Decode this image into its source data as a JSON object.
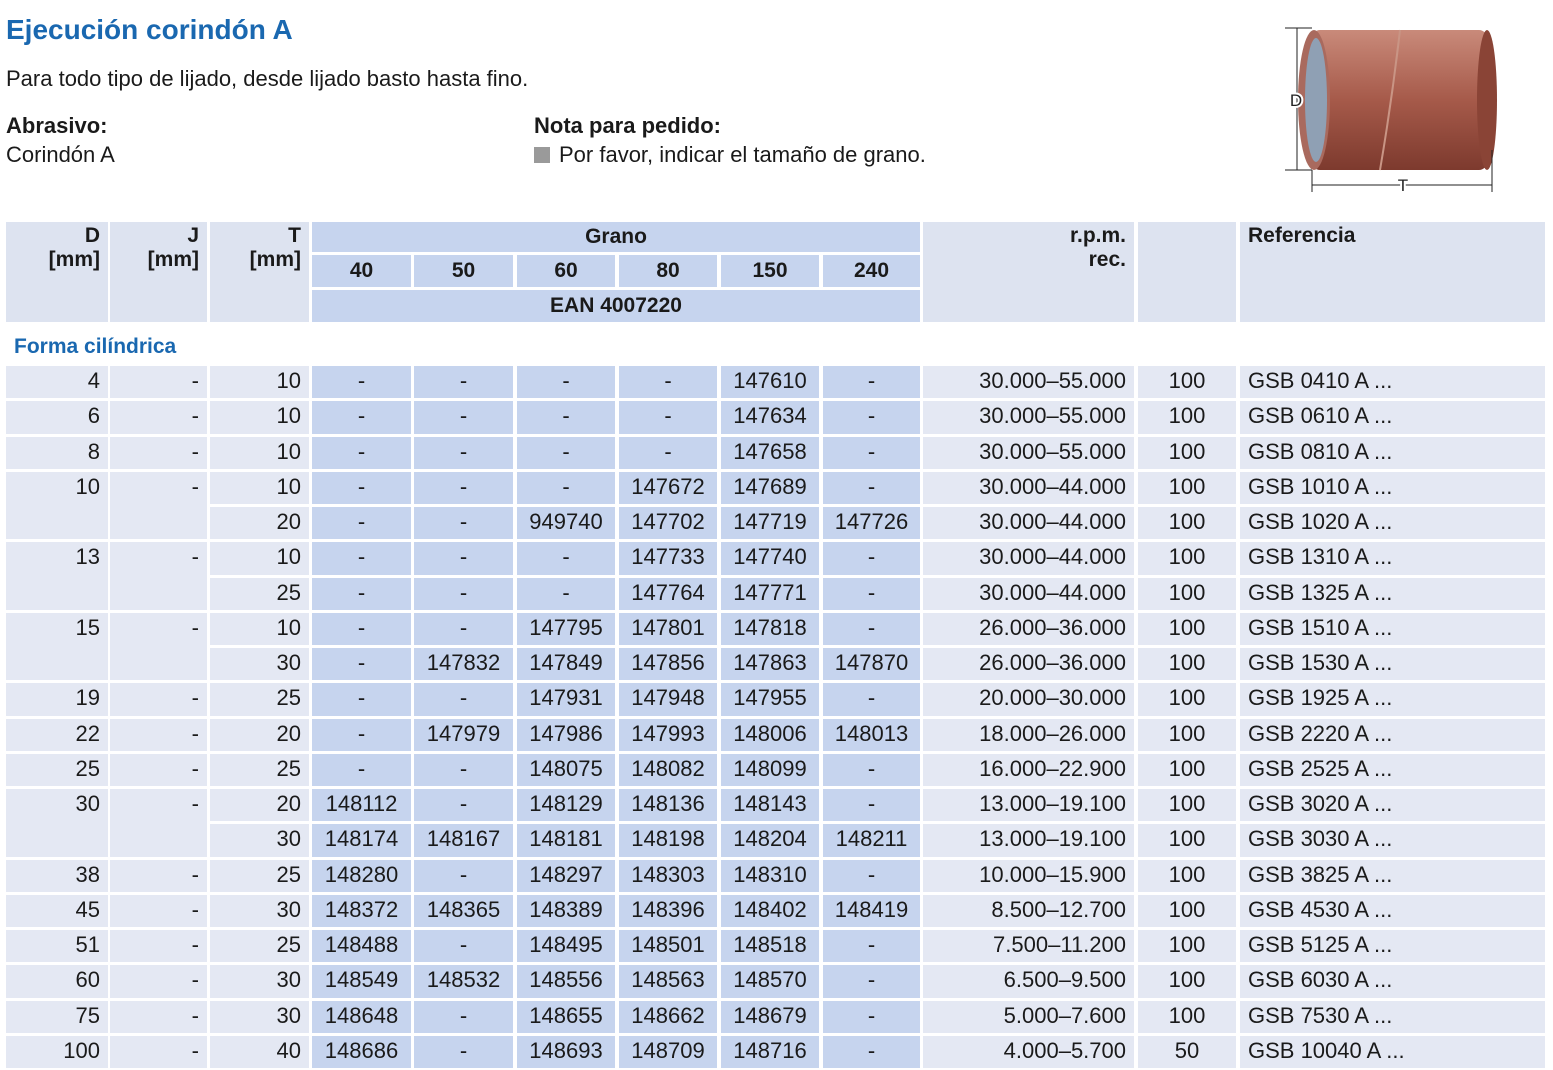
{
  "header": {
    "title": "Ejecución corindón A",
    "subtitle": "Para todo tipo de lijado, desde lijado basto hasta fino."
  },
  "abrasive": {
    "label": "Abrasivo:",
    "text": "Corindón A"
  },
  "order_note": {
    "label": "Nota para pedido:",
    "text": "Por favor, indicar el tamaño de grano."
  },
  "image": {
    "labels": [
      "D",
      "T"
    ]
  },
  "table": {
    "columns": {
      "d": [
        "D",
        "[mm]"
      ],
      "j": [
        "J",
        "[mm]"
      ],
      "t": [
        "T",
        "[mm]"
      ],
      "grain": "Grano",
      "grain_sizes": [
        "40",
        "50",
        "60",
        "80",
        "150",
        "240"
      ],
      "ean": "EAN 4007220",
      "rpm": [
        "r.p.m.",
        "rec."
      ],
      "reference": "Referencia"
    },
    "section": "Forma cilíndrica",
    "rows": [
      [
        "4",
        "-",
        "10",
        "-",
        "-",
        "-",
        "-",
        "147610",
        "-",
        "30.000–55.000",
        "100",
        "GSB 0410 A ..."
      ],
      [
        "6",
        "-",
        "10",
        "-",
        "-",
        "-",
        "-",
        "147634",
        "-",
        "30.000–55.000",
        "100",
        "GSB 0610 A ..."
      ],
      [
        "8",
        "-",
        "10",
        "-",
        "-",
        "-",
        "-",
        "147658",
        "-",
        "30.000–55.000",
        "100",
        "GSB 0810 A ..."
      ],
      [
        "10",
        "-",
        "10",
        "-",
        "-",
        "-",
        "147672",
        "147689",
        "-",
        "30.000–44.000",
        "100",
        "GSB 1010 A ..."
      ],
      [
        null,
        null,
        "20",
        "-",
        "-",
        "949740",
        "147702",
        "147719",
        "147726",
        "30.000–44.000",
        "100",
        "GSB 1020 A ..."
      ],
      [
        "13",
        "-",
        "10",
        "-",
        "-",
        "-",
        "147733",
        "147740",
        "-",
        "30.000–44.000",
        "100",
        "GSB 1310 A ..."
      ],
      [
        null,
        null,
        "25",
        "-",
        "-",
        "-",
        "147764",
        "147771",
        "-",
        "30.000–44.000",
        "100",
        "GSB 1325 A ..."
      ],
      [
        "15",
        "-",
        "10",
        "-",
        "-",
        "147795",
        "147801",
        "147818",
        "-",
        "26.000–36.000",
        "100",
        "GSB 1510 A ..."
      ],
      [
        null,
        null,
        "30",
        "-",
        "147832",
        "147849",
        "147856",
        "147863",
        "147870",
        "26.000–36.000",
        "100",
        "GSB 1530 A ..."
      ],
      [
        "19",
        "-",
        "25",
        "-",
        "-",
        "147931",
        "147948",
        "147955",
        "-",
        "20.000–30.000",
        "100",
        "GSB 1925 A ..."
      ],
      [
        "22",
        "-",
        "20",
        "-",
        "147979",
        "147986",
        "147993",
        "148006",
        "148013",
        "18.000–26.000",
        "100",
        "GSB 2220 A ..."
      ],
      [
        "25",
        "-",
        "25",
        "-",
        "-",
        "148075",
        "148082",
        "148099",
        "-",
        "16.000–22.900",
        "100",
        "GSB 2525 A ..."
      ],
      [
        "30",
        "-",
        "20",
        "148112",
        "-",
        "148129",
        "148136",
        "148143",
        "-",
        "13.000–19.100",
        "100",
        "GSB 3020 A ..."
      ],
      [
        null,
        null,
        "30",
        "148174",
        "148167",
        "148181",
        "148198",
        "148204",
        "148211",
        "13.000–19.100",
        "100",
        "GSB 3030 A ..."
      ],
      [
        "38",
        "-",
        "25",
        "148280",
        "-",
        "148297",
        "148303",
        "148310",
        "-",
        "10.000–15.900",
        "100",
        "GSB 3825 A ..."
      ],
      [
        "45",
        "-",
        "30",
        "148372",
        "148365",
        "148389",
        "148396",
        "148402",
        "148419",
        "8.500–12.700",
        "100",
        "GSB 4530 A ..."
      ],
      [
        "51",
        "-",
        "25",
        "148488",
        "-",
        "148495",
        "148501",
        "148518",
        "-",
        "7.500–11.200",
        "100",
        "GSB 5125 A ..."
      ],
      [
        "60",
        "-",
        "30",
        "148549",
        "148532",
        "148556",
        "148563",
        "148570",
        "-",
        "6.500–9.500",
        "100",
        "GSB 6030 A ..."
      ],
      [
        "75",
        "-",
        "30",
        "148648",
        "-",
        "148655",
        "148662",
        "148679",
        "-",
        "5.000–7.600",
        "100",
        "GSB 7530 A ..."
      ],
      [
        "100",
        "-",
        "40",
        "148686",
        "-",
        "148693",
        "148709",
        "148716",
        "-",
        "4.000–5.700",
        "50",
        "GSB 10040 A ..."
      ]
    ]
  }
}
